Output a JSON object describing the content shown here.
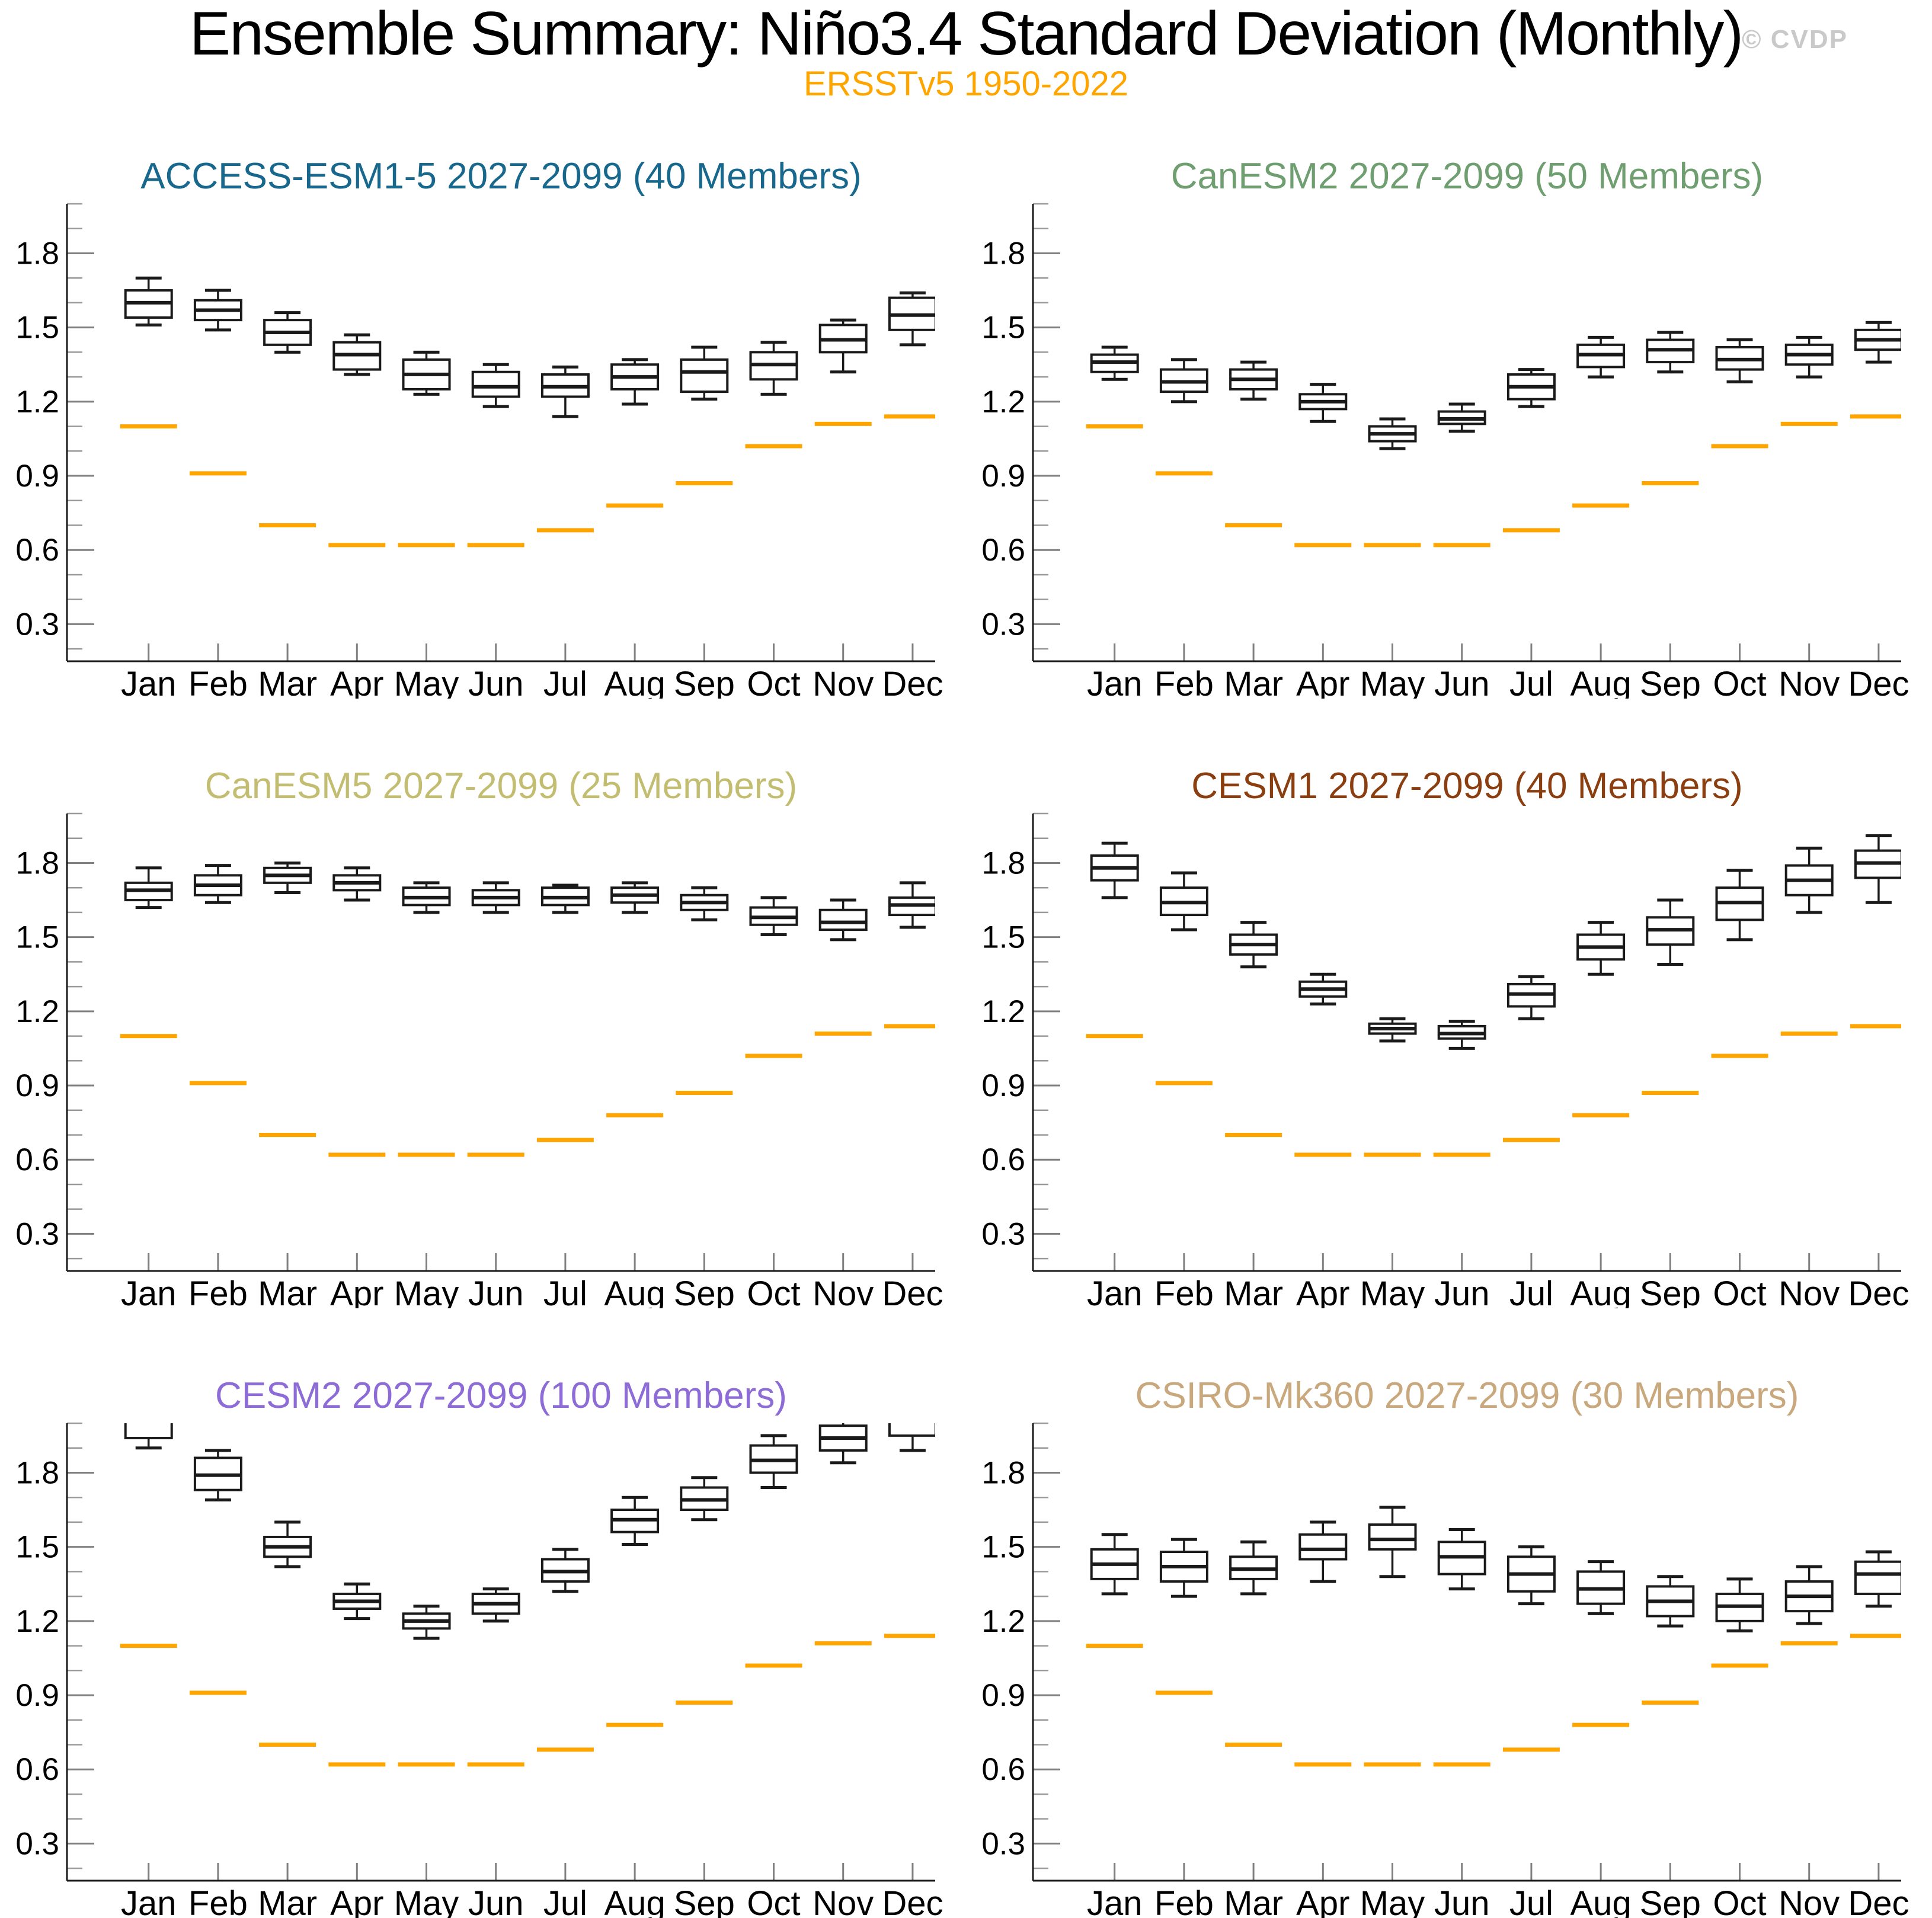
{
  "header": {
    "title": "Ensemble Summary: Niño3.4 Standard Deviation (Monthly)",
    "subtitle": "ERSSTv5 1950-2022",
    "watermark": "© CVDP"
  },
  "chart_data": {
    "type": "box",
    "categories": [
      "Jan",
      "Feb",
      "Mar",
      "Apr",
      "May",
      "Jun",
      "Jul",
      "Aug",
      "Sep",
      "Oct",
      "Nov",
      "Dec"
    ],
    "ylabel": "",
    "ylim": [
      0.15,
      2.0
    ],
    "yticks_major": [
      0.3,
      0.6,
      0.9,
      1.2,
      1.5,
      1.8
    ],
    "yticks_minor": [
      0.2,
      0.4,
      0.5,
      0.7,
      0.8,
      1.0,
      1.1,
      1.3,
      1.4,
      1.6,
      1.7,
      1.9,
      2.0
    ],
    "grid": false,
    "observation": {
      "label": "ERSSTv5 1950-2022",
      "color": "#FFA500",
      "values": [
        1.1,
        0.91,
        0.7,
        0.62,
        0.62,
        0.62,
        0.68,
        0.78,
        0.87,
        1.02,
        1.11,
        1.14
      ]
    },
    "panels": [
      {
        "title": "ACCESS-ESM1-5 2027-2099 (40 Members)",
        "title_color": "#17688C",
        "stats": {
          "whislo": [
            1.51,
            1.49,
            1.4,
            1.31,
            1.23,
            1.18,
            1.14,
            1.19,
            1.21,
            1.23,
            1.32,
            1.43
          ],
          "q1": [
            1.54,
            1.53,
            1.43,
            1.33,
            1.25,
            1.22,
            1.22,
            1.25,
            1.24,
            1.29,
            1.4,
            1.49
          ],
          "med": [
            1.6,
            1.57,
            1.48,
            1.39,
            1.31,
            1.26,
            1.26,
            1.3,
            1.32,
            1.35,
            1.45,
            1.55
          ],
          "q3": [
            1.65,
            1.61,
            1.53,
            1.44,
            1.37,
            1.32,
            1.31,
            1.35,
            1.37,
            1.4,
            1.51,
            1.62
          ],
          "whishi": [
            1.7,
            1.65,
            1.56,
            1.47,
            1.4,
            1.35,
            1.34,
            1.37,
            1.42,
            1.44,
            1.53,
            1.64
          ]
        }
      },
      {
        "title": "CanESM2 2027-2099 (50 Members)",
        "title_color": "#6F9E70",
        "stats": {
          "whislo": [
            1.29,
            1.2,
            1.21,
            1.12,
            1.01,
            1.08,
            1.18,
            1.3,
            1.32,
            1.28,
            1.3,
            1.36
          ],
          "q1": [
            1.32,
            1.24,
            1.25,
            1.17,
            1.04,
            1.11,
            1.21,
            1.34,
            1.36,
            1.33,
            1.35,
            1.41
          ],
          "med": [
            1.36,
            1.28,
            1.29,
            1.2,
            1.07,
            1.13,
            1.26,
            1.39,
            1.41,
            1.37,
            1.39,
            1.45
          ],
          "q3": [
            1.39,
            1.33,
            1.33,
            1.23,
            1.1,
            1.16,
            1.31,
            1.43,
            1.45,
            1.42,
            1.43,
            1.49
          ],
          "whishi": [
            1.42,
            1.37,
            1.36,
            1.27,
            1.13,
            1.19,
            1.33,
            1.46,
            1.48,
            1.45,
            1.46,
            1.52
          ]
        }
      },
      {
        "title": "CanESM5 2027-2099 (25 Members)",
        "title_color": "#C2BD70",
        "stats": {
          "whislo": [
            1.62,
            1.64,
            1.68,
            1.65,
            1.6,
            1.6,
            1.6,
            1.6,
            1.57,
            1.51,
            1.49,
            1.54
          ],
          "q1": [
            1.65,
            1.67,
            1.72,
            1.69,
            1.63,
            1.63,
            1.63,
            1.64,
            1.61,
            1.55,
            1.53,
            1.59
          ],
          "med": [
            1.69,
            1.71,
            1.75,
            1.72,
            1.66,
            1.66,
            1.66,
            1.67,
            1.64,
            1.58,
            1.56,
            1.63
          ],
          "q3": [
            1.72,
            1.75,
            1.78,
            1.75,
            1.7,
            1.69,
            1.7,
            1.7,
            1.67,
            1.62,
            1.61,
            1.66
          ],
          "whishi": [
            1.78,
            1.79,
            1.8,
            1.78,
            1.72,
            1.72,
            1.71,
            1.72,
            1.7,
            1.66,
            1.65,
            1.72
          ]
        }
      },
      {
        "title": "CESM1 2027-2099 (40 Members)",
        "title_color": "#8B3E10",
        "stats": {
          "whislo": [
            1.66,
            1.53,
            1.38,
            1.23,
            1.08,
            1.05,
            1.17,
            1.35,
            1.39,
            1.49,
            1.6,
            1.64
          ],
          "q1": [
            1.73,
            1.59,
            1.43,
            1.26,
            1.11,
            1.09,
            1.22,
            1.41,
            1.47,
            1.57,
            1.67,
            1.74
          ],
          "med": [
            1.78,
            1.64,
            1.47,
            1.29,
            1.13,
            1.11,
            1.27,
            1.46,
            1.53,
            1.64,
            1.73,
            1.8
          ],
          "q3": [
            1.83,
            1.7,
            1.51,
            1.32,
            1.15,
            1.14,
            1.31,
            1.51,
            1.58,
            1.7,
            1.79,
            1.85
          ],
          "whishi": [
            1.88,
            1.76,
            1.56,
            1.35,
            1.17,
            1.16,
            1.34,
            1.56,
            1.65,
            1.77,
            1.86,
            1.91
          ]
        }
      },
      {
        "title": "CESM2 2027-2099 (100 Members)",
        "title_color": "#8D6CD8",
        "stats": {
          "whislo": [
            1.9,
            1.69,
            1.42,
            1.21,
            1.13,
            1.2,
            1.32,
            1.51,
            1.61,
            1.74,
            1.84,
            1.89
          ],
          "q1": [
            1.94,
            1.73,
            1.46,
            1.25,
            1.17,
            1.23,
            1.36,
            1.56,
            1.65,
            1.8,
            1.89,
            1.95
          ],
          "med": [
            2.02,
            1.79,
            1.5,
            1.28,
            1.2,
            1.27,
            1.4,
            1.61,
            1.69,
            1.85,
            1.94,
            2.02
          ],
          "q3": [
            2.07,
            1.86,
            1.54,
            1.31,
            1.23,
            1.31,
            1.45,
            1.65,
            1.74,
            1.91,
            1.99,
            2.07
          ],
          "whishi": [
            2.11,
            1.89,
            1.6,
            1.35,
            1.26,
            1.33,
            1.49,
            1.7,
            1.78,
            1.95,
            2.05,
            2.11
          ]
        }
      },
      {
        "title": "CSIRO-Mk360 2027-2099 (30 Members)",
        "title_color": "#C8A87C",
        "stats": {
          "whislo": [
            1.31,
            1.3,
            1.31,
            1.36,
            1.38,
            1.33,
            1.27,
            1.23,
            1.18,
            1.16,
            1.19,
            1.26
          ],
          "q1": [
            1.37,
            1.36,
            1.37,
            1.45,
            1.49,
            1.39,
            1.32,
            1.27,
            1.22,
            1.2,
            1.24,
            1.31
          ],
          "med": [
            1.43,
            1.42,
            1.41,
            1.49,
            1.53,
            1.46,
            1.39,
            1.33,
            1.28,
            1.26,
            1.3,
            1.39
          ],
          "q3": [
            1.49,
            1.48,
            1.46,
            1.55,
            1.59,
            1.52,
            1.46,
            1.4,
            1.34,
            1.31,
            1.36,
            1.44
          ],
          "whishi": [
            1.55,
            1.53,
            1.52,
            1.6,
            1.66,
            1.57,
            1.5,
            1.44,
            1.38,
            1.37,
            1.42,
            1.48
          ]
        }
      }
    ]
  }
}
